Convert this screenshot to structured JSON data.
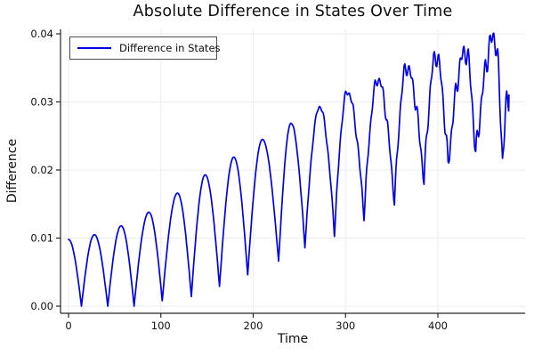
{
  "chart_data": {
    "type": "line",
    "title": "Absolute Difference in States Over Time",
    "xlabel": "Time",
    "ylabel": "Difference",
    "legend_position": "top-left",
    "grid": true,
    "background_color": "#ffffff",
    "grid_color": "#eeeeee",
    "axis_color": "#262626",
    "text_color": "#0e0e0e",
    "xlim": [
      -9,
      494
    ],
    "ylim": [
      -0.00105,
      0.0406
    ],
    "x_ticks": {
      "values": [
        0,
        100,
        200,
        300,
        400
      ],
      "labels": [
        "0",
        "100",
        "200",
        "300",
        "400"
      ]
    },
    "y_ticks": {
      "values": [
        0,
        0.01,
        0.02,
        0.03,
        0.04
      ],
      "labels": [
        "0.00",
        "0.01",
        "0.02",
        "0.03",
        "0.04"
      ]
    },
    "series": [
      {
        "name": "Difference in States",
        "color": "#0000ee",
        "x_range": [
          0,
          477
        ],
        "description": "Oscillating absolute difference; amplitude grows from ~0.01 to ~0.04, troughs rise from 0 to ~0.02, curve becomes jagged after t~235",
        "extrema_keypoints": {
          "x": [
            0,
            14,
            28,
            42.5,
            57,
            71,
            87,
            101.5,
            118,
            133,
            148,
            163.5,
            179,
            194,
            210,
            227.5,
            241,
            256,
            272,
            288,
            302,
            320,
            335,
            353,
            366,
            385,
            398,
            411,
            430,
            441,
            461,
            470,
            477
          ],
          "y": [
            0.0098,
            0.0,
            0.0105,
            0.0,
            0.0118,
            0.0,
            0.0138,
            0.0008,
            0.0166,
            0.0014,
            0.0193,
            0.0029,
            0.0219,
            0.0046,
            0.0245,
            0.0066,
            0.0269,
            0.0088,
            0.0293,
            0.0108,
            0.0315,
            0.0134,
            0.0333,
            0.0153,
            0.0351,
            0.0184,
            0.0368,
            0.0205,
            0.0374,
            0.0219,
            0.0395,
            0.0215,
            0.031
          ]
        },
        "high_frequency_jitter": {
          "onset_x": 233,
          "max_amplitude": 0.0025,
          "components": [
            {
              "period": 4.6,
              "weight": 0.55,
              "phase": 0.9
            },
            {
              "period": 7.9,
              "weight": 0.45,
              "phase": 2.0
            }
          ]
        }
      }
    ]
  }
}
